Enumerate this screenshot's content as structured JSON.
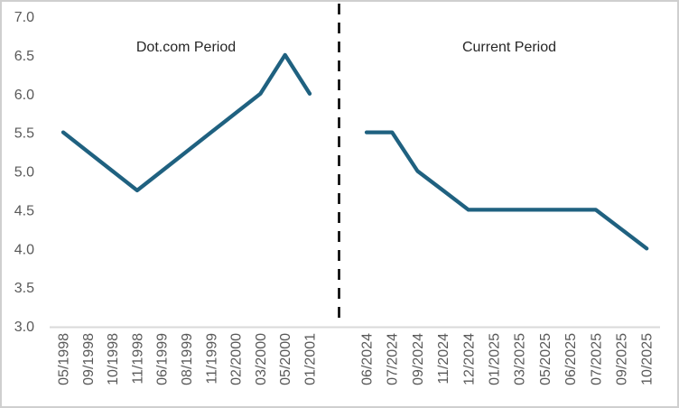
{
  "chart_data": {
    "type": "line",
    "title": "",
    "xlabel": "",
    "ylabel": "",
    "ylim": [
      3.0,
      7.0
    ],
    "ytick_step": 0.5,
    "yticks": [
      "7.0",
      "6.5",
      "6.0",
      "5.5",
      "5.0",
      "4.5",
      "4.0",
      "3.5",
      "3.0"
    ],
    "grid": false,
    "legend_position": "none",
    "line_color": "#1f6180",
    "axis_text_color": "#595959",
    "annotation_color": "#262626",
    "separator": {
      "style": "dashed",
      "color": "#000000",
      "orientation": "vertical",
      "location": "between the two periods"
    },
    "annotations": [
      {
        "text": "Dot.com Period"
      },
      {
        "text": "Current Period"
      }
    ],
    "series": [
      {
        "name": "Dot.com Period",
        "categories": [
          "05/1998",
          "09/1998",
          "10/1998",
          "11/1998",
          "06/1999",
          "08/1999",
          "11/1999",
          "02/2000",
          "03/2000",
          "05/2000",
          "01/2001"
        ],
        "values": [
          5.5,
          5.25,
          5.0,
          4.75,
          5.0,
          5.25,
          5.5,
          5.75,
          6.0,
          6.5,
          6.0
        ]
      },
      {
        "name": "Current Period",
        "categories": [
          "06/2024",
          "07/2024",
          "09/2024",
          "11/2024",
          "12/2024",
          "01/2025",
          "03/2025",
          "05/2025",
          "06/2025",
          "07/2025",
          "09/2025",
          "10/2025"
        ],
        "values": [
          5.5,
          5.5,
          5.0,
          4.75,
          4.5,
          4.5,
          4.5,
          4.5,
          4.5,
          4.5,
          4.25,
          4.0
        ]
      }
    ]
  }
}
